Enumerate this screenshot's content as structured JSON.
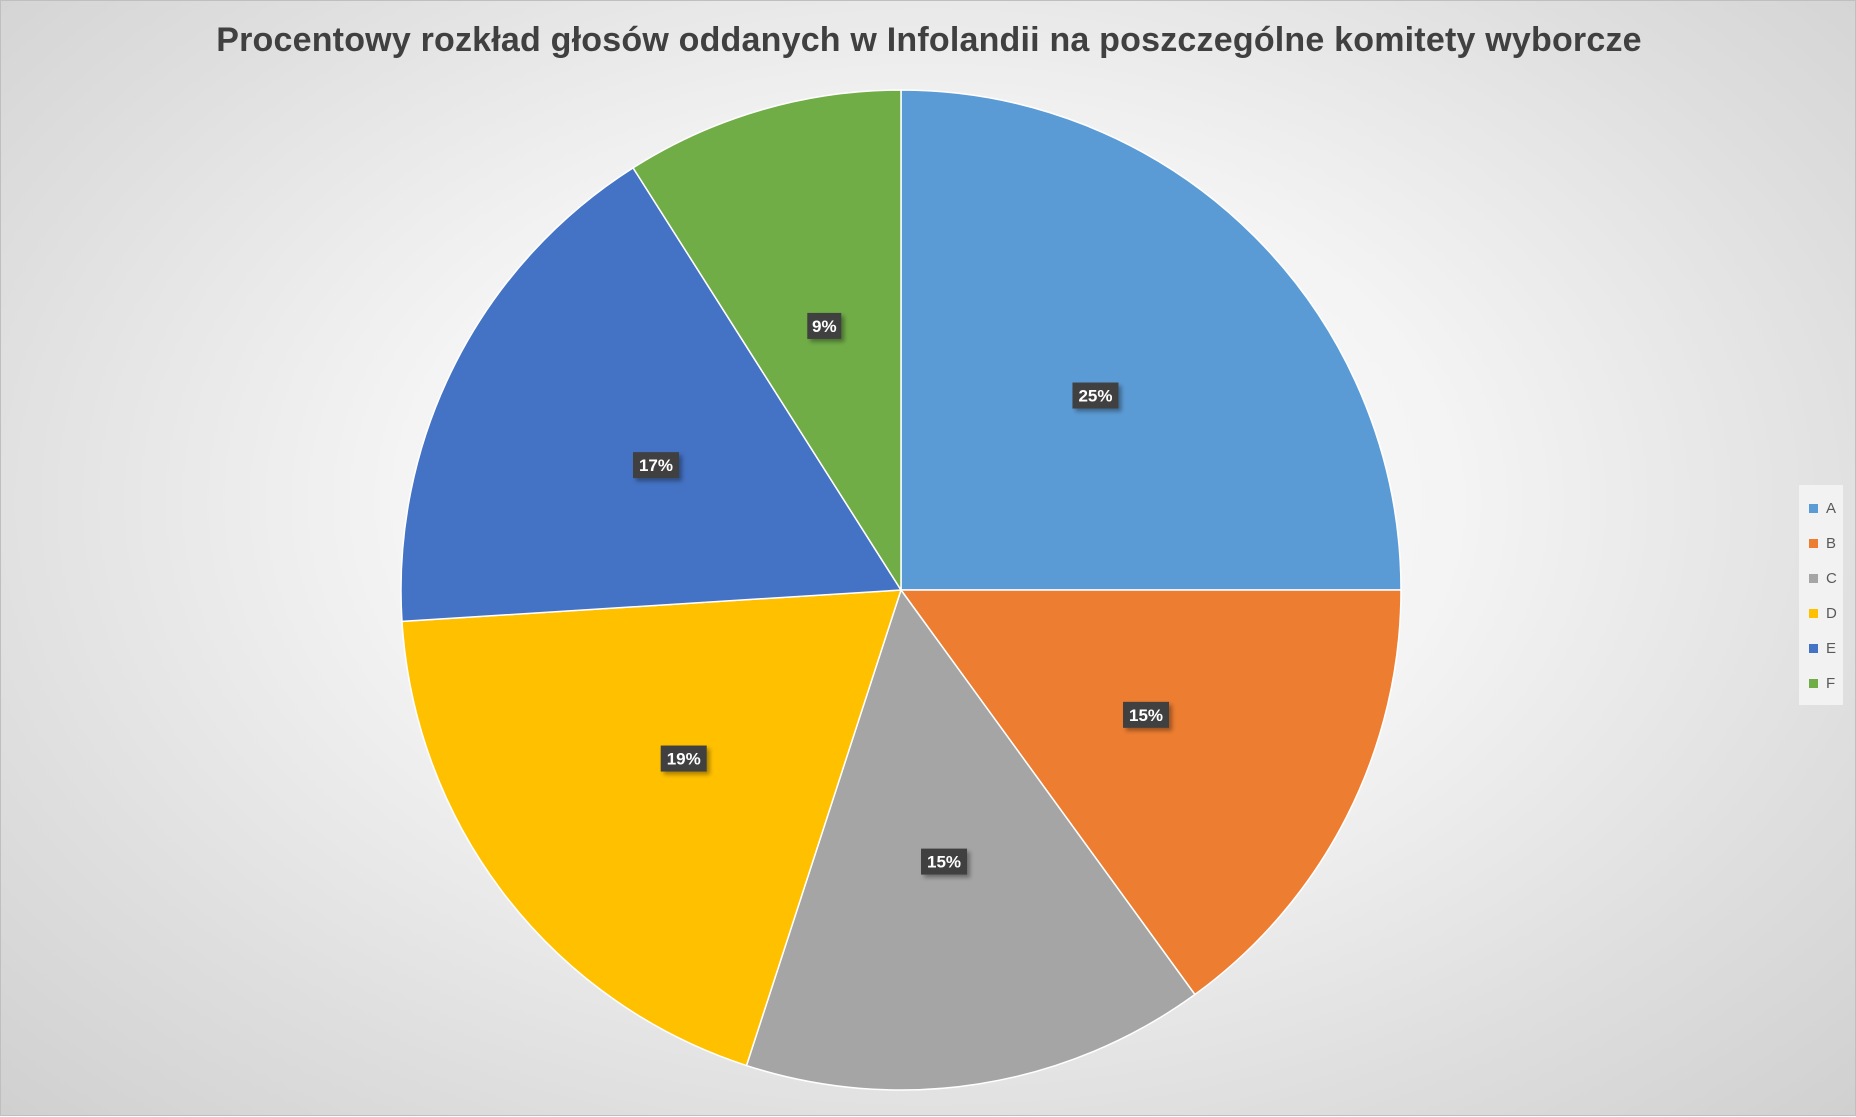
{
  "chart_data": {
    "type": "pie",
    "title": "Procentowy rozkład głosów oddanych w Infolandii na poszczególne komitety wyborcze",
    "categories": [
      "A",
      "B",
      "C",
      "D",
      "E",
      "F"
    ],
    "values": [
      25,
      15,
      15,
      19,
      17,
      9
    ],
    "data_labels": [
      "25%",
      "15%",
      "15%",
      "19%",
      "17%",
      "9%"
    ],
    "colors": [
      "#5B9BD5",
      "#ED7D31",
      "#A5A5A5",
      "#FFC000",
      "#4472C4",
      "#70AD47"
    ],
    "legend_position": "right",
    "start_angle": "12 o'clock, clockwise"
  }
}
